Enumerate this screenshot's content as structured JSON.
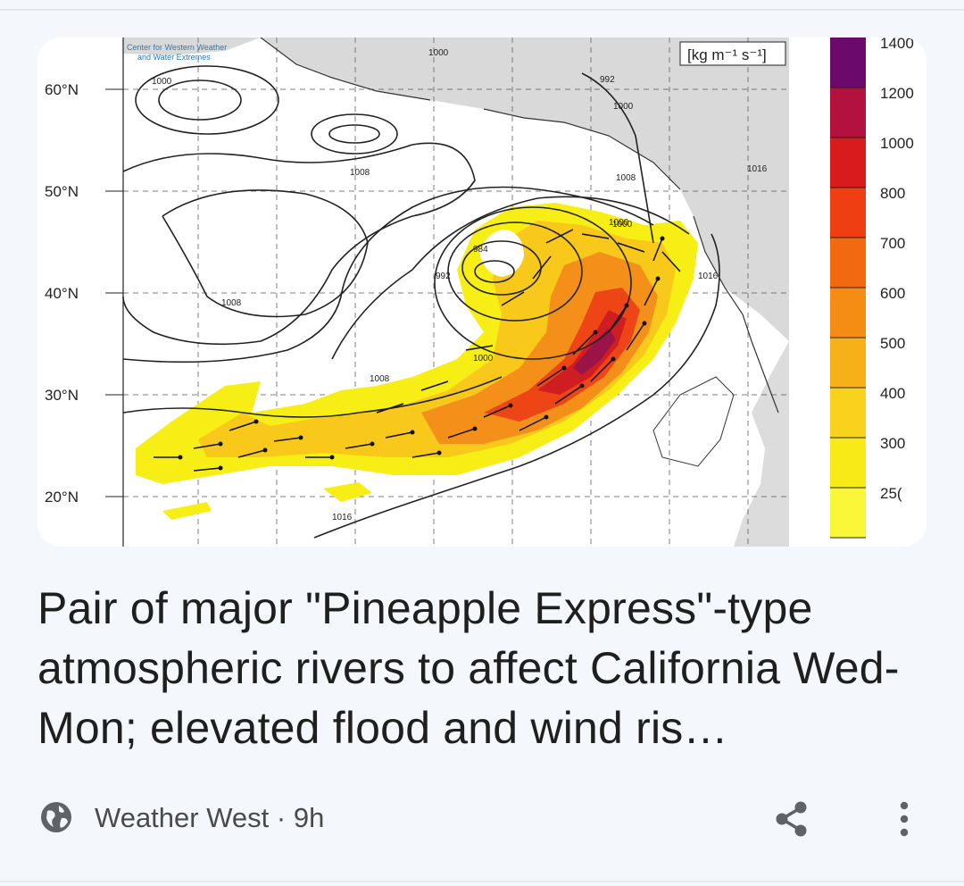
{
  "article": {
    "headline": "Pair of major \"Pineapple Express\"-type atmospheric rivers to affect California Wed-Mon; elevated flood and wind ris…",
    "source": "Weather West",
    "age": "9h",
    "separator": " · "
  },
  "map_image": {
    "attribution_line1": "Center for Western Weather",
    "attribution_line2": "and Water Extremes",
    "units": "[kg m⁻¹ s⁻¹]",
    "latitude_labels": [
      "60°N",
      "50°N",
      "40°N",
      "30°N",
      "20°N"
    ],
    "colorbar": {
      "labels": [
        "1400",
        "1200",
        "1000",
        "800",
        "700",
        "600",
        "500",
        "400",
        "300",
        "25("
      ],
      "colors": [
        "#6b0a6b",
        "#b3123f",
        "#d81b1b",
        "#ee3e12",
        "#f26a10",
        "#f58c14",
        "#f7b118",
        "#f8d21c",
        "#f7ea16",
        "#f9f737"
      ]
    },
    "isobar_labels": [
      "1000",
      "1000",
      "1000",
      "1008",
      "1016",
      "1008",
      "1008",
      "1008",
      "1000",
      "1000",
      "1016",
      "992",
      "984",
      "992",
      "1000",
      "1016"
    ]
  },
  "icons": {
    "source": "globe-icon",
    "share": "share-icon",
    "more": "more-vertical-icon"
  }
}
